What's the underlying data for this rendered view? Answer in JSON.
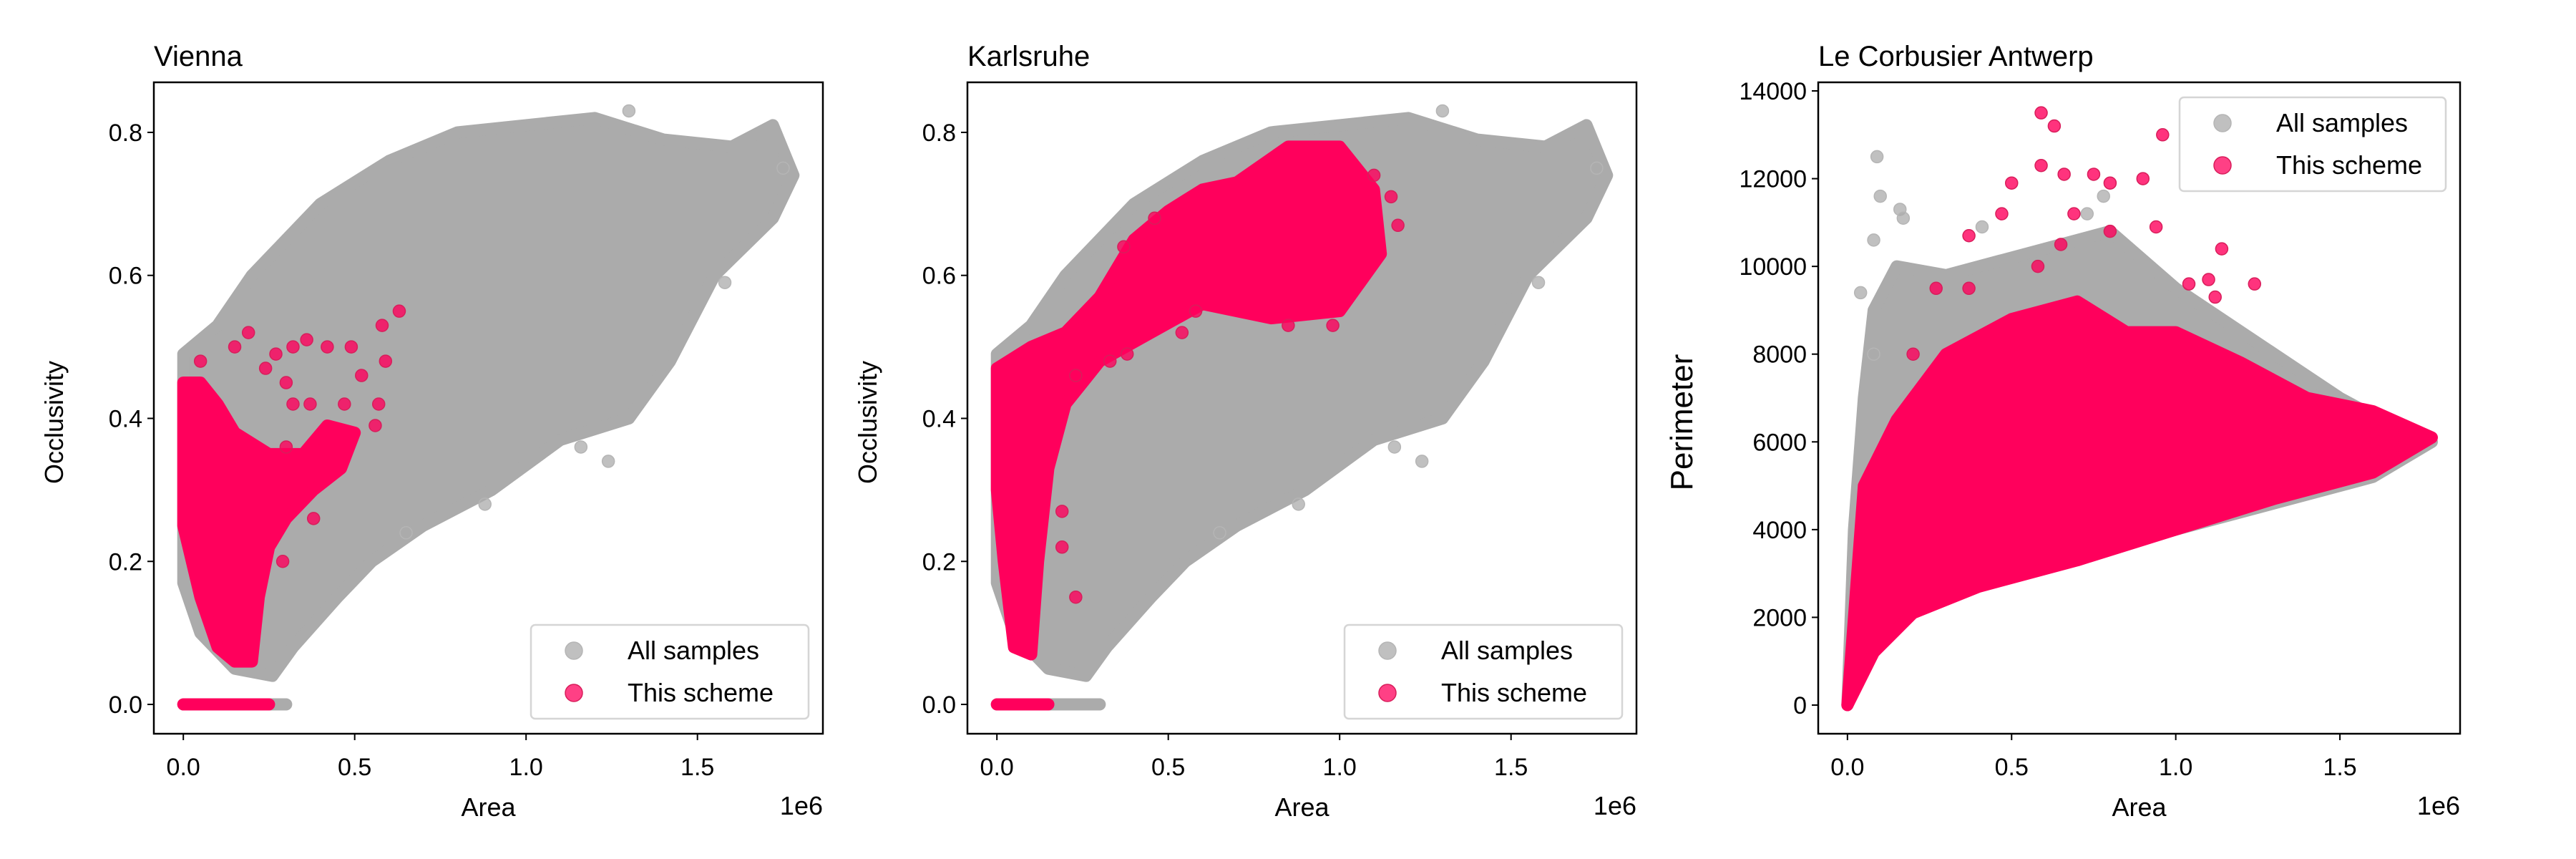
{
  "colors": {
    "all_samples": "#ababab",
    "this_scheme": "#ff005c",
    "scheme_edge": "#d81e5b"
  },
  "chart_data": [
    {
      "type": "scatter",
      "title": "Vienna",
      "xlabel": "Area",
      "ylabel": "Occlusivity",
      "x_offset_text": "1e6",
      "xlim": [
        -0.086,
        1.866
      ],
      "ylim": [
        -0.041,
        0.87
      ],
      "xticks": [
        0,
        0.5,
        1.0,
        1.5
      ],
      "xtick_labels": [
        "0.0",
        "0.5",
        "1.0",
        "1.5"
      ],
      "yticks": [
        0,
        0.2,
        0.4,
        0.6,
        0.8
      ],
      "ytick_labels": [
        "0.0",
        "0.2",
        "0.4",
        "0.6",
        "0.8"
      ],
      "legend": {
        "placement": "lower-right",
        "entries": [
          "All samples",
          "This scheme"
        ]
      },
      "series": [
        {
          "name": "All samples",
          "cloud": [
            [
              0,
              0.49
            ],
            [
              0.1,
              0.53
            ],
            [
              0.2,
              0.6
            ],
            [
              0.3,
              0.65
            ],
            [
              0.4,
              0.7
            ],
            [
              0.6,
              0.76
            ],
            [
              0.8,
              0.8
            ],
            [
              1.0,
              0.81
            ],
            [
              1.2,
              0.82
            ],
            [
              1.4,
              0.79
            ],
            [
              1.6,
              0.78
            ],
            [
              1.72,
              0.81
            ],
            [
              1.78,
              0.74
            ],
            [
              1.72,
              0.68
            ],
            [
              1.55,
              0.6
            ],
            [
              1.42,
              0.48
            ],
            [
              1.3,
              0.4
            ],
            [
              1.1,
              0.37
            ],
            [
              0.9,
              0.3
            ],
            [
              0.7,
              0.25
            ],
            [
              0.55,
              0.2
            ],
            [
              0.45,
              0.15
            ],
            [
              0.32,
              0.08
            ],
            [
              0.26,
              0.04
            ],
            [
              0.15,
              0.05
            ],
            [
              0.05,
              0.1
            ],
            [
              0,
              0.17
            ]
          ],
          "zero_band": [
            0,
            0.3
          ],
          "points": [
            [
              1.3,
              0.83
            ],
            [
              1.75,
              0.75
            ],
            [
              1.58,
              0.59
            ],
            [
              1.24,
              0.34
            ],
            [
              1.16,
              0.36
            ],
            [
              0.88,
              0.28
            ],
            [
              0.65,
              0.24
            ]
          ]
        },
        {
          "name": "This scheme",
          "cloud": [
            [
              0,
              0.45
            ],
            [
              0.05,
              0.45
            ],
            [
              0.1,
              0.42
            ],
            [
              0.15,
              0.38
            ],
            [
              0.25,
              0.35
            ],
            [
              0.35,
              0.35
            ],
            [
              0.42,
              0.39
            ],
            [
              0.5,
              0.38
            ],
            [
              0.46,
              0.33
            ],
            [
              0.38,
              0.3
            ],
            [
              0.3,
              0.26
            ],
            [
              0.25,
              0.22
            ],
            [
              0.22,
              0.15
            ],
            [
              0.2,
              0.06
            ],
            [
              0.15,
              0.06
            ],
            [
              0.1,
              0.08
            ],
            [
              0.05,
              0.15
            ],
            [
              0,
              0.25
            ]
          ],
          "zero_band": [
            0,
            0.25
          ],
          "points": [
            [
              0.05,
              0.48
            ],
            [
              0.19,
              0.52
            ],
            [
              0.15,
              0.5
            ],
            [
              0.27,
              0.49
            ],
            [
              0.32,
              0.5
            ],
            [
              0.36,
              0.51
            ],
            [
              0.42,
              0.5
            ],
            [
              0.49,
              0.5
            ],
            [
              0.58,
              0.53
            ],
            [
              0.63,
              0.55
            ],
            [
              0.59,
              0.48
            ],
            [
              0.52,
              0.46
            ],
            [
              0.3,
              0.45
            ],
            [
              0.32,
              0.42
            ],
            [
              0.24,
              0.47
            ],
            [
              0.57,
              0.42
            ],
            [
              0.56,
              0.39
            ],
            [
              0.47,
              0.42
            ],
            [
              0.37,
              0.42
            ],
            [
              0.3,
              0.36
            ],
            [
              0.29,
              0.2
            ],
            [
              0.38,
              0.26
            ]
          ]
        }
      ]
    },
    {
      "type": "scatter",
      "title": "Karlsruhe",
      "xlabel": "Area",
      "ylabel": "Occlusivity",
      "x_offset_text": "1e6",
      "xlim": [
        -0.086,
        1.866
      ],
      "ylim": [
        -0.041,
        0.87
      ],
      "xticks": [
        0,
        0.5,
        1.0,
        1.5
      ],
      "xtick_labels": [
        "0.0",
        "0.5",
        "1.0",
        "1.5"
      ],
      "yticks": [
        0,
        0.2,
        0.4,
        0.6,
        0.8
      ],
      "ytick_labels": [
        "0.0",
        "0.2",
        "0.4",
        "0.6",
        "0.8"
      ],
      "legend": {
        "placement": "lower-right",
        "entries": [
          "All samples",
          "This scheme"
        ]
      },
      "series": [
        {
          "name": "All samples",
          "cloud": [
            [
              0,
              0.49
            ],
            [
              0.1,
              0.53
            ],
            [
              0.2,
              0.6
            ],
            [
              0.3,
              0.65
            ],
            [
              0.4,
              0.7
            ],
            [
              0.6,
              0.76
            ],
            [
              0.8,
              0.8
            ],
            [
              1.0,
              0.81
            ],
            [
              1.2,
              0.82
            ],
            [
              1.4,
              0.79
            ],
            [
              1.6,
              0.78
            ],
            [
              1.72,
              0.81
            ],
            [
              1.78,
              0.74
            ],
            [
              1.72,
              0.68
            ],
            [
              1.55,
              0.6
            ],
            [
              1.42,
              0.48
            ],
            [
              1.3,
              0.4
            ],
            [
              1.1,
              0.37
            ],
            [
              0.9,
              0.3
            ],
            [
              0.7,
              0.25
            ],
            [
              0.55,
              0.2
            ],
            [
              0.45,
              0.15
            ],
            [
              0.32,
              0.08
            ],
            [
              0.26,
              0.04
            ],
            [
              0.15,
              0.05
            ],
            [
              0.05,
              0.1
            ],
            [
              0,
              0.17
            ]
          ],
          "zero_band": [
            0,
            0.3
          ],
          "points": [
            [
              1.3,
              0.83
            ],
            [
              1.75,
              0.75
            ],
            [
              1.58,
              0.59
            ],
            [
              1.24,
              0.34
            ],
            [
              1.16,
              0.36
            ],
            [
              0.88,
              0.28
            ],
            [
              0.65,
              0.24
            ]
          ]
        },
        {
          "name": "This scheme",
          "cloud": [
            [
              0,
              0.47
            ],
            [
              0.1,
              0.5
            ],
            [
              0.2,
              0.52
            ],
            [
              0.3,
              0.57
            ],
            [
              0.4,
              0.65
            ],
            [
              0.5,
              0.69
            ],
            [
              0.6,
              0.72
            ],
            [
              0.7,
              0.73
            ],
            [
              0.85,
              0.78
            ],
            [
              1.0,
              0.78
            ],
            [
              1.1,
              0.72
            ],
            [
              1.12,
              0.63
            ],
            [
              1.0,
              0.55
            ],
            [
              0.8,
              0.54
            ],
            [
              0.6,
              0.56
            ],
            [
              0.45,
              0.52
            ],
            [
              0.3,
              0.48
            ],
            [
              0.2,
              0.42
            ],
            [
              0.15,
              0.33
            ],
            [
              0.12,
              0.2
            ],
            [
              0.1,
              0.07
            ],
            [
              0.05,
              0.08
            ],
            [
              0.02,
              0.2
            ],
            [
              0,
              0.3
            ]
          ],
          "zero_band": [
            0,
            0.15
          ],
          "points": [
            [
              1.17,
              0.67
            ],
            [
              1.15,
              0.71
            ],
            [
              1.1,
              0.74
            ],
            [
              0.98,
              0.53
            ],
            [
              0.85,
              0.53
            ],
            [
              0.54,
              0.52
            ],
            [
              0.33,
              0.48
            ],
            [
              0.38,
              0.49
            ],
            [
              0.23,
              0.46
            ],
            [
              0.23,
              0.15
            ],
            [
              0.19,
              0.22
            ],
            [
              0.19,
              0.27
            ],
            [
              0.46,
              0.68
            ],
            [
              0.37,
              0.64
            ],
            [
              0.58,
              0.55
            ]
          ]
        }
      ]
    },
    {
      "type": "scatter",
      "title": "Le Corbusier Antwerp",
      "xlabel": "Area",
      "ylabel": "Perimeter",
      "x_offset_text": "1e6",
      "xlim": [
        -0.089,
        1.866
      ],
      "ylim": [
        -653,
        14196
      ],
      "xticks": [
        0,
        0.5,
        1.0,
        1.5
      ],
      "xtick_labels": [
        "0.0",
        "0.5",
        "1.0",
        "1.5"
      ],
      "yticks": [
        0,
        2000,
        4000,
        6000,
        8000,
        10000,
        12000,
        14000
      ],
      "ytick_labels": [
        "0",
        "2000",
        "4000",
        "6000",
        "8000",
        "10000",
        "12000",
        "14000"
      ],
      "legend": {
        "placement": "upper-right",
        "entries": [
          "All samples",
          "This scheme"
        ]
      },
      "series": [
        {
          "name": "All samples",
          "cloud": [
            [
              0,
              0
            ],
            [
              0.02,
              4000
            ],
            [
              0.05,
              7000
            ],
            [
              0.08,
              9000
            ],
            [
              0.15,
              10000
            ],
            [
              0.3,
              9800
            ],
            [
              0.5,
              10200
            ],
            [
              0.8,
              10800
            ],
            [
              1.0,
              9500
            ],
            [
              1.3,
              8000
            ],
            [
              1.5,
              7000
            ],
            [
              1.7,
              6200
            ],
            [
              1.78,
              6000
            ],
            [
              1.6,
              5200
            ],
            [
              1.3,
              4600
            ],
            [
              1.0,
              4000
            ],
            [
              0.7,
              3400
            ],
            [
              0.4,
              2800
            ],
            [
              0.2,
              2100
            ],
            [
              0.1,
              1500
            ],
            [
              0.03,
              500
            ]
          ],
          "zero_band": null,
          "points": [
            [
              0.09,
              12500
            ],
            [
              0.1,
              11600
            ],
            [
              0.16,
              11300
            ],
            [
              0.08,
              10600
            ],
            [
              0.41,
              10900
            ],
            [
              0.04,
              9400
            ],
            [
              0.08,
              8000
            ],
            [
              0.17,
              11100
            ],
            [
              0.78,
              11600
            ],
            [
              0.73,
              11200
            ]
          ]
        },
        {
          "name": "This scheme",
          "cloud": [
            [
              0,
              0
            ],
            [
              0.03,
              3000
            ],
            [
              0.05,
              5000
            ],
            [
              0.15,
              6500
            ],
            [
              0.3,
              8000
            ],
            [
              0.5,
              8800
            ],
            [
              0.7,
              9200
            ],
            [
              0.85,
              8500
            ],
            [
              1.0,
              8500
            ],
            [
              1.2,
              7800
            ],
            [
              1.4,
              7000
            ],
            [
              1.6,
              6700
            ],
            [
              1.78,
              6100
            ],
            [
              1.6,
              5300
            ],
            [
              1.3,
              4700
            ],
            [
              1.0,
              4000
            ],
            [
              0.7,
              3300
            ],
            [
              0.4,
              2700
            ],
            [
              0.2,
              2100
            ],
            [
              0.08,
              1200
            ],
            [
              0.02,
              300
            ]
          ],
          "zero_band": null,
          "points": [
            [
              0.59,
              13500
            ],
            [
              0.63,
              13200
            ],
            [
              0.96,
              13000
            ],
            [
              0.59,
              12300
            ],
            [
              0.5,
              11900
            ],
            [
              0.66,
              12100
            ],
            [
              0.75,
              12100
            ],
            [
              0.9,
              12000
            ],
            [
              0.8,
              11900
            ],
            [
              0.47,
              11200
            ],
            [
              0.37,
              10700
            ],
            [
              0.69,
              11200
            ],
            [
              0.8,
              10800
            ],
            [
              0.94,
              10900
            ],
            [
              1.14,
              10400
            ],
            [
              1.24,
              9600
            ],
            [
              0.27,
              9500
            ],
            [
              0.37,
              9500
            ],
            [
              1.1,
              9700
            ],
            [
              0.58,
              10000
            ],
            [
              0.65,
              10500
            ],
            [
              0.2,
              8000
            ],
            [
              1.04,
              9600
            ],
            [
              1.12,
              9300
            ]
          ]
        }
      ]
    }
  ]
}
